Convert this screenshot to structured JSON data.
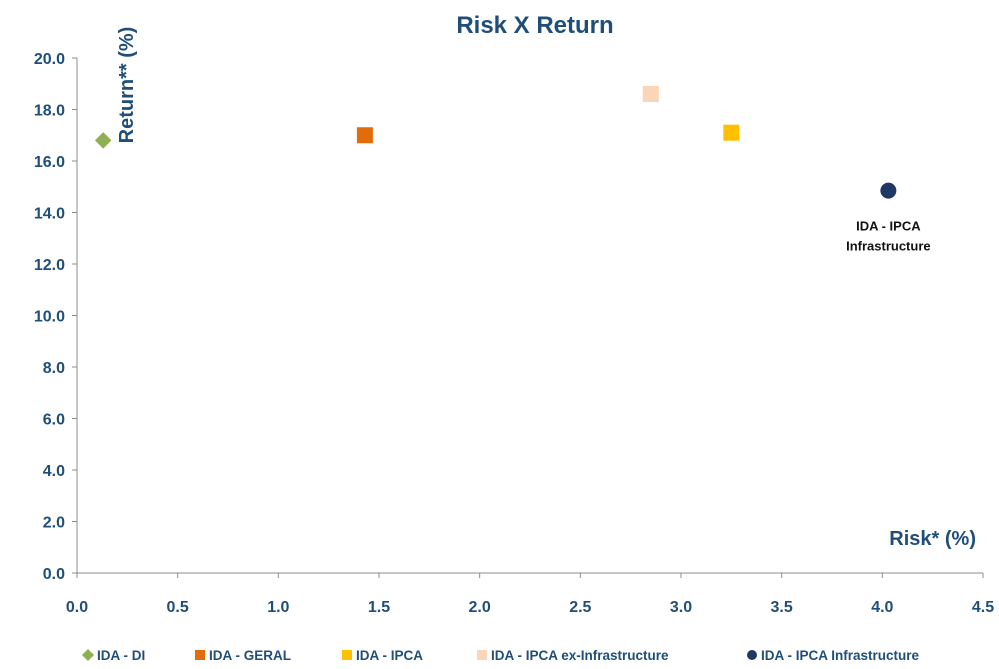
{
  "chart_data": {
    "type": "scatter",
    "title": "Risk X Return",
    "xlabel": "Risk* (%)",
    "ylabel": "Return** (%)",
    "xlim": [
      0,
      4.5
    ],
    "ylim": [
      0,
      20
    ],
    "x_ticks": [
      "0.0",
      "0.5",
      "1.0",
      "1.5",
      "2.0",
      "2.5",
      "3.0",
      "3.5",
      "4.0",
      "4.5"
    ],
    "y_ticks": [
      "0.0",
      "2.0",
      "4.0",
      "6.0",
      "8.0",
      "10.0",
      "12.0",
      "14.0",
      "16.0",
      "18.0",
      "20.0"
    ],
    "grid": false,
    "legend_position": "bottom",
    "series": [
      {
        "name": "IDA - DI",
        "x": 0.13,
        "y": 16.8,
        "marker": "diamond",
        "color": "#8fb050"
      },
      {
        "name": "IDA - GERAL",
        "x": 1.43,
        "y": 17.0,
        "marker": "square",
        "color": "#e36c0a"
      },
      {
        "name": "IDA - IPCA",
        "x": 3.25,
        "y": 17.1,
        "marker": "square",
        "color": "#ffc000"
      },
      {
        "name": "IDA - IPCA ex-Infrastructure",
        "x": 2.85,
        "y": 18.6,
        "marker": "square",
        "color": "#fbd5b5"
      },
      {
        "name": "IDA - IPCA Infrastructure",
        "x": 4.03,
        "y": 14.85,
        "marker": "circle",
        "color": "#1f3864"
      }
    ],
    "annotations": [
      {
        "lines": [
          "IDA - IPCA",
          "Infrastructure"
        ],
        "x": 4.03,
        "y": 14.85
      }
    ]
  }
}
